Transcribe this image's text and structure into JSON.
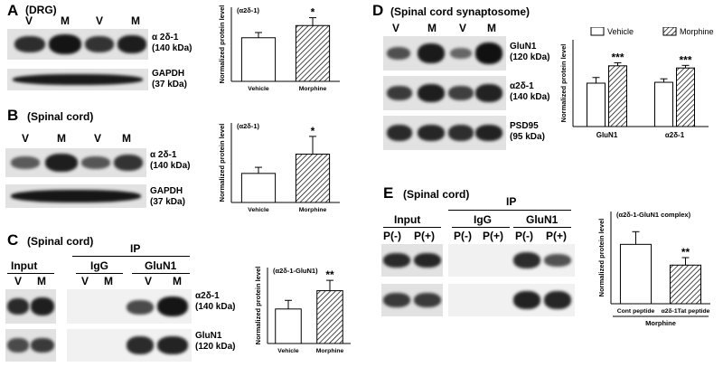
{
  "panels": {
    "A": {
      "letter": "A",
      "title": "(DRG)",
      "lanes": [
        "V",
        "M",
        "V",
        "M"
      ],
      "blot_labels": [
        {
          "name": "α 2δ-1",
          "kda": "(140 kDa)"
        },
        {
          "name": "GAPDH",
          "kda": "(37 kDa)"
        }
      ]
    },
    "B": {
      "letter": "B",
      "title": "(Spinal cord)",
      "lanes": [
        "V",
        "M",
        "V",
        "M"
      ],
      "blot_labels": [
        {
          "name": "α 2δ-1",
          "kda": "(140 kDa)"
        },
        {
          "name": "GAPDH",
          "kda": "(37 kDa)"
        }
      ]
    },
    "C": {
      "letter": "C",
      "title": "(Spinal cord)",
      "ip_label": "IP",
      "input_label": "Input",
      "igg_label": "IgG",
      "glun1_label": "GluN1",
      "input_lanes": [
        "V",
        "M"
      ],
      "igg_lanes": [
        "V",
        "M"
      ],
      "glun1_lanes": [
        "V",
        "M"
      ],
      "blot_labels": [
        {
          "name": "α2δ-1",
          "kda": "(140 kDa)"
        },
        {
          "name": "GluN1",
          "kda": "(120 kDa)"
        }
      ]
    },
    "D": {
      "letter": "D",
      "title": "(Spinal cord synaptosome)",
      "lanes": [
        "V",
        "M",
        "V",
        "M"
      ],
      "blot_labels": [
        {
          "name": "GluN1",
          "kda": "(120 kDa)"
        },
        {
          "name": "α2δ-1",
          "kda": "(140 kDa)"
        },
        {
          "name": "PSD95",
          "kda": "(95 kDa)"
        }
      ]
    },
    "E": {
      "letter": "E",
      "title": "(Spinal cord)",
      "ip_label": "IP",
      "input_label": "Input",
      "igg_label": "IgG",
      "glun1_label": "GluN1",
      "input_lanes": [
        "P(-)",
        "P(+)"
      ],
      "igg_lanes": [
        "P(-)",
        "P(+)"
      ],
      "glun1_lanes": [
        "P(-)",
        "P(+)"
      ]
    }
  },
  "chart_data": [
    {
      "id": "A",
      "type": "bar",
      "title": "(α2δ-1)",
      "ylabel": "Normalized protein level",
      "categories": [
        "Vehicle",
        "Morphine"
      ],
      "values": [
        1.0,
        1.28
      ],
      "errors": [
        0.12,
        0.18
      ],
      "significance": [
        "",
        "*"
      ],
      "ylim": [
        0,
        1.7
      ]
    },
    {
      "id": "B",
      "type": "bar",
      "title": "(α2δ-1)",
      "ylabel": "Normalized protein level",
      "categories": [
        "Vehicle",
        "Morphine"
      ],
      "values": [
        0.95,
        1.58
      ],
      "errors": [
        0.2,
        0.58
      ],
      "significance": [
        "",
        "*"
      ],
      "ylim": [
        0,
        2.6
      ]
    },
    {
      "id": "C",
      "type": "bar",
      "title": "(α2δ-1-GluN1)",
      "ylabel": "Normalized protein level",
      "categories": [
        "Vehicle",
        "Morphine"
      ],
      "values": [
        1.0,
        1.53
      ],
      "errors": [
        0.25,
        0.3
      ],
      "significance": [
        "",
        "**"
      ],
      "ylim": [
        0,
        2.2
      ]
    },
    {
      "id": "D",
      "type": "bar",
      "ylabel": "Normalized protein level",
      "categories": [
        "GluN1",
        "α2δ-1"
      ],
      "series": [
        {
          "name": "Vehicle",
          "values": [
            1.0,
            1.02
          ],
          "errors": [
            0.13,
            0.08
          ],
          "significance": [
            "",
            ""
          ]
        },
        {
          "name": "Morphine",
          "values": [
            1.4,
            1.35
          ],
          "errors": [
            0.07,
            0.06
          ],
          "significance": [
            "***",
            "***"
          ]
        }
      ],
      "legend": "top",
      "ylim": [
        0,
        2.0
      ]
    },
    {
      "id": "E",
      "type": "bar",
      "title": "(α2δ-1-GluN1 complex)",
      "ylabel": "Normalized protein level",
      "categories": [
        "Cont peptide",
        "α2δ-1Tat peptide"
      ],
      "group_label": "Morphine",
      "values": [
        1.03,
        0.67
      ],
      "errors": [
        0.22,
        0.13
      ],
      "significance": [
        "",
        "**"
      ],
      "ylim": [
        0,
        1.6
      ]
    }
  ]
}
